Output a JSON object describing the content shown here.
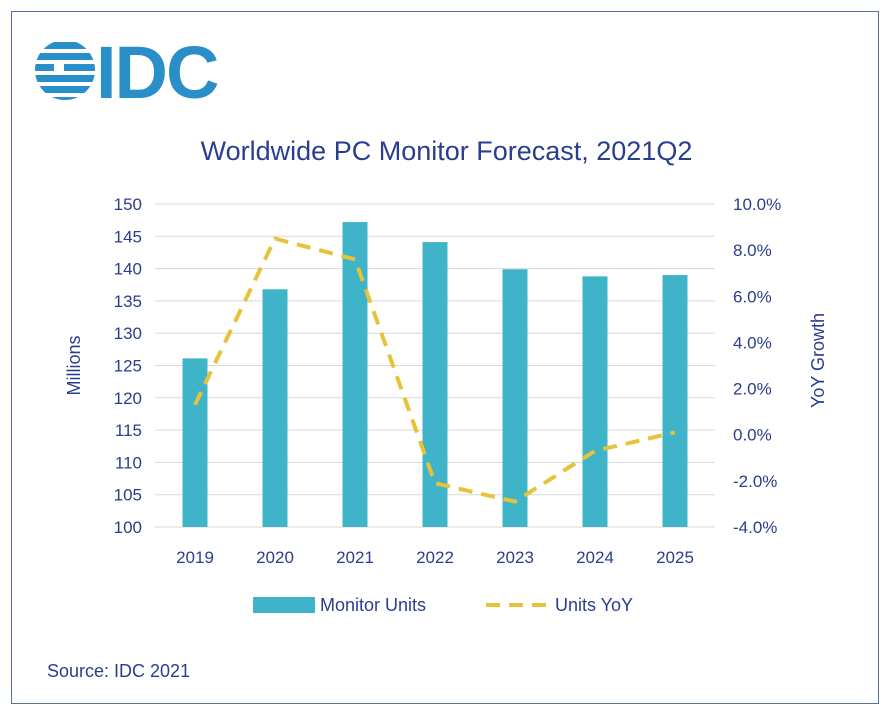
{
  "brand": {
    "logo_text": "IDC",
    "logo_color": "#2a8ec8"
  },
  "source": "Source: IDC 2021",
  "colors": {
    "bar": "#3fb3c8",
    "line": "#e6c33a",
    "text": "#2b3d8f",
    "grid": "#d9d9d9",
    "border": "#5a6ea8"
  },
  "chart_data": {
    "type": "bar",
    "title": "Worldwide PC Monitor Forecast, 2021Q2",
    "categories": [
      "2019",
      "2020",
      "2021",
      "2022",
      "2023",
      "2024",
      "2025"
    ],
    "series": [
      {
        "name": "Monitor Units",
        "kind": "bar",
        "axis": "left",
        "values": [
          126.1,
          136.8,
          147.2,
          144.1,
          139.9,
          138.8,
          139.0
        ]
      },
      {
        "name": "Units YoY",
        "kind": "line",
        "style": "dashed",
        "axis": "right",
        "values": [
          1.3,
          8.5,
          7.6,
          -2.1,
          -2.9,
          -0.7,
          0.1
        ]
      }
    ],
    "ylabel_left": "Millions",
    "ylabel_right": "YoY Growth",
    "ylim_left": [
      100,
      150
    ],
    "ylim_right": [
      -4.0,
      10.0
    ],
    "yticks_left": [
      "100",
      "105",
      "110",
      "115",
      "120",
      "125",
      "130",
      "135",
      "140",
      "145",
      "150"
    ],
    "yticks_right": [
      "-4.0%",
      "-2.0%",
      "0.0%",
      "2.0%",
      "4.0%",
      "6.0%",
      "8.0%",
      "10.0%"
    ],
    "grid": true,
    "legend": "bottom"
  }
}
